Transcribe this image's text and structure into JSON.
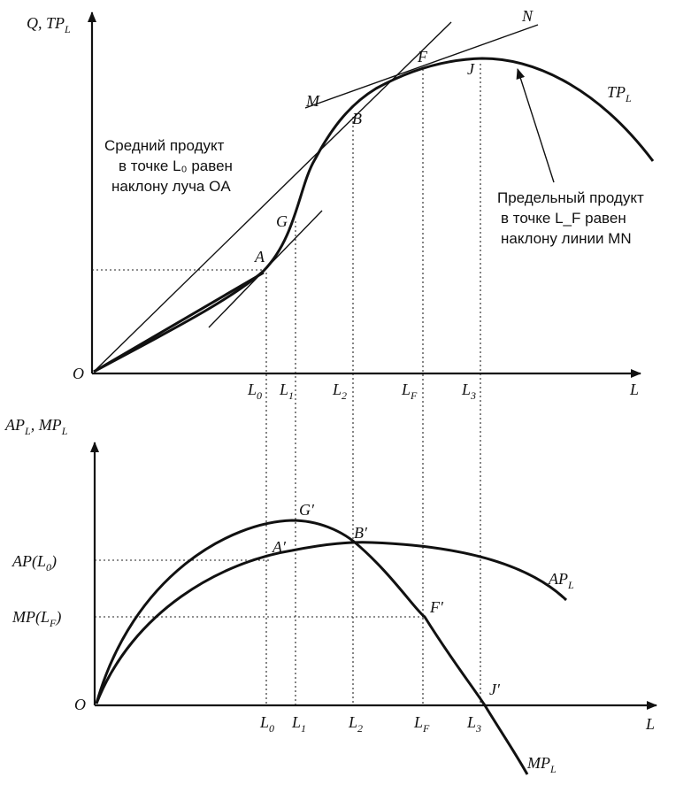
{
  "top_graph": {
    "y_axis_label": "Q, TP",
    "y_axis_sub": "L",
    "x_axis_label": "L",
    "origin": "O",
    "curve_label": "TP",
    "curve_label_sub": "L",
    "points": {
      "A": "A",
      "G": "G",
      "B": "B",
      "F": "F",
      "J": "J",
      "M": "M",
      "N": "N"
    },
    "ticks": [
      {
        "main": "L",
        "sub": "0"
      },
      {
        "main": "L",
        "sub": "1"
      },
      {
        "main": "L",
        "sub": "2"
      },
      {
        "main": "L",
        "sub": "F"
      },
      {
        "main": "L",
        "sub": "3"
      }
    ],
    "note_left": [
      "Средний продукт",
      "в точке L₀ равен",
      "наклону луча OA"
    ],
    "note_right": [
      "Предельный продукт",
      "в точке L_F равен",
      "наклону линии MN"
    ]
  },
  "bottom_graph": {
    "y_axis_label": "AP",
    "y_axis_label_2": ", MP",
    "y_axis_sub": "L",
    "y_axis_sub_2": "L",
    "x_axis_label": "L",
    "origin": "O",
    "ap_label": "AP",
    "ap_label_sub": "L",
    "mp_label": "MP",
    "mp_label_sub": "L",
    "y_tick_ap": "AP(L",
    "y_tick_ap_sub": "0",
    "y_tick_ap_end": ")",
    "y_tick_mp": "MP(L",
    "y_tick_mp_sub": "F",
    "y_tick_mp_end": ")",
    "points": {
      "A": "A′",
      "G": "G′",
      "B": "B′",
      "F": "F′",
      "J": "J′"
    },
    "ticks": [
      {
        "main": "L",
        "sub": "0"
      },
      {
        "main": "L",
        "sub": "1"
      },
      {
        "main": "L",
        "sub": "2"
      },
      {
        "main": "L",
        "sub": "F"
      },
      {
        "main": "L",
        "sub": "3"
      }
    ]
  }
}
